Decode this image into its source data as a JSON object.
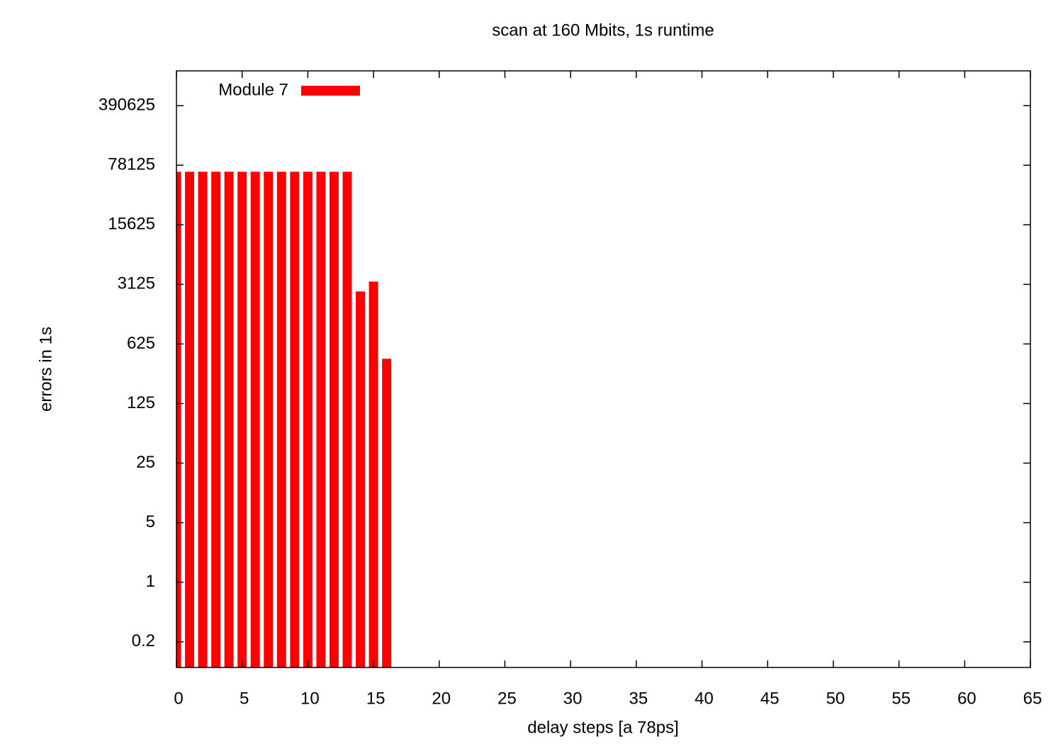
{
  "chart_data": {
    "type": "bar",
    "title": "scan at 160 Mbits, 1s runtime",
    "x_label": "delay steps [a 78ps]",
    "y_label": "errors in 1s",
    "x": [
      0,
      1,
      2,
      3,
      4,
      5,
      6,
      7,
      8,
      9,
      10,
      11,
      12,
      13,
      14,
      15,
      16
    ],
    "series": [
      {
        "name": "Module 7",
        "color": "#ff0000",
        "values": [
          65535,
          65535,
          65535,
          65535,
          65535,
          65535,
          65535,
          65535,
          65535,
          65535,
          65535,
          65535,
          65535,
          65535,
          2580,
          3370,
          419
        ]
      }
    ],
    "xlim": [
      0,
      65
    ],
    "xticks": [
      0,
      5,
      10,
      15,
      20,
      25,
      30,
      35,
      40,
      45,
      50,
      55,
      60,
      65
    ],
    "ylim": [
      0.1,
      1000000
    ],
    "yticks": [
      0.2,
      1,
      5,
      25,
      125,
      625,
      3125,
      15625,
      78125,
      390625
    ],
    "y_scale": "log",
    "legend": "top-left",
    "grid": false
  }
}
